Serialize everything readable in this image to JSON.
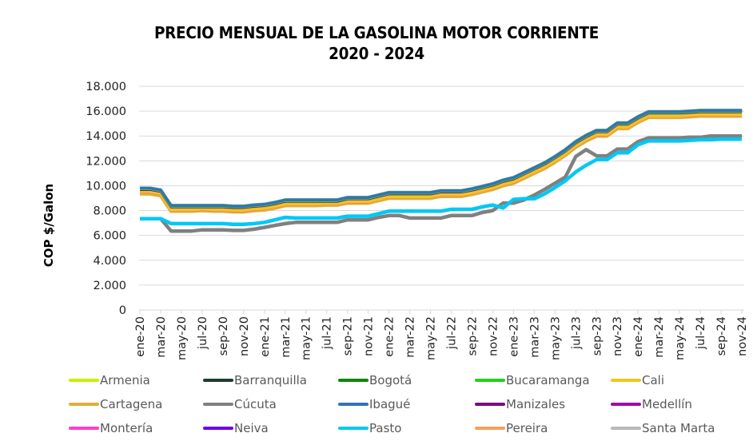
{
  "chart_data": {
    "type": "line",
    "title": "PRECIO MENSUAL DE LA GASOLINA MOTOR CORRIENTE",
    "subtitle": "2020 - 2024",
    "xlabel": "",
    "ylabel": "COP $/Galon",
    "ylim": [
      0,
      18000
    ],
    "yticks": [
      0,
      2000,
      4000,
      6000,
      8000,
      10000,
      12000,
      14000,
      16000,
      18000
    ],
    "ytick_labels": [
      "0",
      "2.000",
      "4.000",
      "6.000",
      "8.000",
      "10.000",
      "12.000",
      "14.000",
      "16.000",
      "18.000"
    ],
    "grid": true,
    "legend_position": "bottom",
    "x": [
      "ene-20",
      "feb-20",
      "mar-20",
      "abr-20",
      "may-20",
      "jun-20",
      "jul-20",
      "ago-20",
      "sep-20",
      "oct-20",
      "nov-20",
      "dic-20",
      "ene-21",
      "feb-21",
      "mar-21",
      "abr-21",
      "may-21",
      "jun-21",
      "jul-21",
      "ago-21",
      "sep-21",
      "oct-21",
      "nov-21",
      "dic-21",
      "ene-22",
      "feb-22",
      "mar-22",
      "abr-22",
      "may-22",
      "jun-22",
      "jul-22",
      "ago-22",
      "sep-22",
      "oct-22",
      "nov-22",
      "dic-22",
      "ene-23",
      "feb-23",
      "mar-23",
      "abr-23",
      "may-23",
      "jun-23",
      "jul-23",
      "ago-23",
      "sep-23",
      "oct-23",
      "nov-23",
      "dic-23",
      "ene-24",
      "feb-24",
      "mar-24",
      "abr-24",
      "may-24",
      "jun-24",
      "jul-24",
      "ago-24",
      "sep-24",
      "oct-24",
      "nov-24"
    ],
    "x_tick_labels": [
      "ene-20",
      "mar-20",
      "may-20",
      "jul-20",
      "sep-20",
      "nov-20",
      "ene-21",
      "mar-21",
      "may-21",
      "jul-21",
      "sep-21",
      "nov-21",
      "ene-22",
      "mar-22",
      "may-22",
      "jul-22",
      "sep-22",
      "nov-22",
      "ene-23",
      "mar-23",
      "may-23",
      "jul-23",
      "sep-23",
      "nov-23",
      "ene-24",
      "mar-24",
      "may-24",
      "jul-24",
      "sep-24",
      "nov-24"
    ],
    "series": [
      {
        "name": "Armenia",
        "color": "#C6F000",
        "values": [
          9750,
          9750,
          9600,
          8350,
          8350,
          8350,
          8350,
          8350,
          8350,
          8300,
          8300,
          8400,
          8450,
          8600,
          8800,
          8800,
          8800,
          8800,
          8800,
          8800,
          9000,
          9000,
          9000,
          9200,
          9400,
          9400,
          9400,
          9400,
          9400,
          9550,
          9550,
          9550,
          9700,
          9900,
          10100,
          10400,
          10600,
          11000,
          11400,
          11800,
          12300,
          12850,
          13500,
          14000,
          14400,
          14400,
          15000,
          15000,
          15500,
          15900,
          15900,
          15900,
          15900,
          15950,
          16000,
          16000,
          16000,
          16000,
          16000
        ]
      },
      {
        "name": "Barranquilla",
        "color": "#1F3D2F",
        "values": [
          9700,
          9700,
          9550,
          8300,
          8300,
          8300,
          8300,
          8300,
          8300,
          8250,
          8250,
          8350,
          8400,
          8550,
          8750,
          8750,
          8750,
          8750,
          8750,
          8750,
          8950,
          8950,
          8950,
          9150,
          9350,
          9350,
          9350,
          9350,
          9350,
          9500,
          9500,
          9500,
          9650,
          9850,
          10050,
          10350,
          10550,
          10950,
          11350,
          11750,
          12250,
          12800,
          13450,
          13950,
          14350,
          14350,
          14950,
          14950,
          15450,
          15850,
          15850,
          15850,
          15850,
          15900,
          15950,
          15950,
          15950,
          15950,
          15950
        ]
      },
      {
        "name": "Bogotá",
        "color": "#0A8A00",
        "values": [
          9800,
          9800,
          9650,
          8400,
          8400,
          8400,
          8400,
          8400,
          8400,
          8350,
          8350,
          8450,
          8500,
          8650,
          8850,
          8850,
          8850,
          8850,
          8850,
          8850,
          9050,
          9050,
          9050,
          9250,
          9450,
          9450,
          9450,
          9450,
          9450,
          9600,
          9600,
          9600,
          9750,
          9950,
          10150,
          10450,
          10650,
          11050,
          11450,
          11850,
          12350,
          12900,
          13550,
          14050,
          14450,
          14450,
          15050,
          15050,
          15550,
          15950,
          15950,
          15950,
          15950,
          16000,
          16050,
          16050,
          16050,
          16050,
          16050
        ]
      },
      {
        "name": "Bucaramanga",
        "color": "#22D11A",
        "values": [
          9750,
          9750,
          9600,
          8350,
          8350,
          8350,
          8350,
          8350,
          8350,
          8300,
          8300,
          8400,
          8450,
          8600,
          8800,
          8800,
          8800,
          8800,
          8800,
          8800,
          9000,
          9000,
          9000,
          9200,
          9400,
          9400,
          9400,
          9400,
          9400,
          9550,
          9550,
          9550,
          9700,
          9900,
          10100,
          10400,
          10600,
          11000,
          11400,
          11800,
          12300,
          12850,
          13500,
          14000,
          14400,
          14400,
          15000,
          15000,
          15500,
          15900,
          15900,
          15900,
          15900,
          15950,
          16000,
          16000,
          16000,
          16000,
          16000
        ]
      },
      {
        "name": "Cali",
        "color": "#F5C518",
        "values": [
          9550,
          9550,
          9400,
          8100,
          8100,
          8100,
          8150,
          8100,
          8100,
          8050,
          8050,
          8150,
          8200,
          8350,
          8550,
          8550,
          8550,
          8550,
          8600,
          8600,
          8750,
          8750,
          8750,
          8950,
          9150,
          9150,
          9150,
          9150,
          9150,
          9300,
          9300,
          9300,
          9450,
          9650,
          9850,
          10150,
          10350,
          10750,
          11150,
          11550,
          12050,
          12600,
          13250,
          13750,
          14150,
          14150,
          14750,
          14750,
          15250,
          15650,
          15650,
          15650,
          15650,
          15700,
          15750,
          15750,
          15750,
          15750,
          15750
        ]
      },
      {
        "name": "Cartagena",
        "color": "#E0AE3C",
        "values": [
          9350,
          9350,
          9200,
          7950,
          7950,
          7950,
          8000,
          7950,
          7950,
          7900,
          7900,
          8000,
          8050,
          8200,
          8400,
          8400,
          8400,
          8400,
          8450,
          8450,
          8600,
          8600,
          8600,
          8800,
          9000,
          9000,
          9000,
          9000,
          9000,
          9150,
          9150,
          9150,
          9300,
          9500,
          9700,
          10000,
          10200,
          10600,
          11000,
          11400,
          11900,
          12450,
          13100,
          13600,
          14000,
          14000,
          14600,
          14600,
          15100,
          15500,
          15500,
          15500,
          15500,
          15550,
          15600,
          15600,
          15600,
          15600,
          15600
        ]
      },
      {
        "name": "Cúcuta",
        "color": "#808080",
        "values": [
          7350,
          7350,
          7350,
          6350,
          6350,
          6350,
          6450,
          6450,
          6450,
          6400,
          6400,
          6500,
          6650,
          6800,
          6950,
          7050,
          7050,
          7050,
          7050,
          7050,
          7250,
          7250,
          7250,
          7450,
          7600,
          7600,
          7400,
          7400,
          7400,
          7400,
          7600,
          7600,
          7600,
          7850,
          8000,
          8600,
          8600,
          8850,
          9250,
          9700,
          10200,
          10700,
          12350,
          12900,
          12400,
          12400,
          12950,
          12950,
          13550,
          13850,
          13850,
          13850,
          13850,
          13900,
          13900,
          14000,
          14000,
          14000,
          14000
        ]
      },
      {
        "name": "Ibagué",
        "color": "#2E75B6",
        "values": [
          9800,
          9800,
          9650,
          8400,
          8400,
          8400,
          8400,
          8400,
          8400,
          8350,
          8350,
          8450,
          8500,
          8650,
          8850,
          8850,
          8850,
          8850,
          8850,
          8850,
          9050,
          9050,
          9050,
          9250,
          9450,
          9450,
          9450,
          9450,
          9450,
          9600,
          9600,
          9600,
          9750,
          9950,
          10150,
          10450,
          10650,
          11050,
          11450,
          11850,
          12350,
          12900,
          13550,
          14050,
          14450,
          14450,
          15050,
          15050,
          15550,
          15950,
          15950,
          15950,
          15950,
          16000,
          16050,
          16050,
          16050,
          16050,
          16050
        ]
      },
      {
        "name": "Manizales",
        "color": "#7B0A82",
        "values": [
          9750,
          9750,
          9600,
          8350,
          8350,
          8350,
          8350,
          8350,
          8350,
          8300,
          8300,
          8400,
          8450,
          8600,
          8800,
          8800,
          8800,
          8800,
          8800,
          8800,
          9000,
          9000,
          9000,
          9200,
          9400,
          9400,
          9400,
          9400,
          9400,
          9550,
          9550,
          9550,
          9700,
          9900,
          10100,
          10400,
          10600,
          11000,
          11400,
          11800,
          12300,
          12850,
          13500,
          14000,
          14400,
          14400,
          15000,
          15000,
          15500,
          15900,
          15900,
          15900,
          15900,
          15950,
          16000,
          16000,
          16000,
          16000,
          16000
        ]
      },
      {
        "name": "Medellín",
        "color": "#A00AA8",
        "values": [
          9750,
          9750,
          9600,
          8350,
          8350,
          8350,
          8350,
          8350,
          8350,
          8300,
          8300,
          8400,
          8450,
          8600,
          8800,
          8800,
          8800,
          8800,
          8800,
          8800,
          9000,
          9000,
          9000,
          9200,
          9400,
          9400,
          9400,
          9400,
          9400,
          9550,
          9550,
          9550,
          9700,
          9900,
          10100,
          10400,
          10600,
          11000,
          11400,
          11800,
          12300,
          12850,
          13500,
          14000,
          14400,
          14400,
          15000,
          15000,
          15500,
          15900,
          15900,
          15900,
          15900,
          15950,
          16000,
          16000,
          16000,
          16000,
          16000
        ]
      },
      {
        "name": "Montería",
        "color": "#FF3EC8",
        "values": [
          9500,
          9500,
          9350,
          8050,
          8050,
          8050,
          8100,
          8050,
          8050,
          8000,
          8000,
          8100,
          8150,
          8300,
          8500,
          8500,
          8500,
          8500,
          8550,
          8550,
          8700,
          8700,
          8700,
          8900,
          9100,
          9100,
          9100,
          9100,
          9100,
          9250,
          9250,
          9250,
          9400,
          9600,
          9800,
          10100,
          10300,
          10700,
          11100,
          11500,
          12000,
          12550,
          13200,
          13700,
          14100,
          14100,
          14700,
          14700,
          15200,
          15600,
          15600,
          15600,
          15600,
          15650,
          15700,
          15700,
          15700,
          15700,
          15700
        ]
      },
      {
        "name": "Neiva",
        "color": "#6A00F0",
        "values": [
          9750,
          9750,
          9600,
          8350,
          8350,
          8350,
          8350,
          8350,
          8350,
          8300,
          8300,
          8400,
          8450,
          8600,
          8800,
          8800,
          8800,
          8800,
          8800,
          8800,
          9000,
          9000,
          9000,
          9200,
          9400,
          9400,
          9400,
          9400,
          9400,
          9550,
          9550,
          9550,
          9700,
          9900,
          10100,
          10400,
          10600,
          11000,
          11400,
          11800,
          12300,
          12850,
          13500,
          14000,
          14400,
          14400,
          15000,
          15000,
          15500,
          15900,
          15900,
          15900,
          15900,
          15950,
          16000,
          16000,
          16000,
          16000,
          16000
        ]
      },
      {
        "name": "Pasto",
        "color": "#00C8F5",
        "values": [
          7350,
          7350,
          7350,
          6950,
          6950,
          6950,
          6950,
          6950,
          6950,
          6900,
          6900,
          6950,
          7050,
          7250,
          7450,
          7400,
          7400,
          7400,
          7400,
          7400,
          7550,
          7550,
          7550,
          7750,
          7950,
          7950,
          7950,
          7950,
          7950,
          7950,
          8100,
          8100,
          8100,
          8300,
          8450,
          8200,
          8900,
          8950,
          8950,
          9350,
          9850,
          10400,
          11100,
          11650,
          12100,
          12100,
          12650,
          12650,
          13300,
          13600,
          13600,
          13600,
          13600,
          13650,
          13700,
          13700,
          13750,
          13750,
          13750
        ]
      },
      {
        "name": "Pereira",
        "color": "#F4A05C",
        "values": [
          9650,
          9650,
          9500,
          8250,
          8250,
          8250,
          8250,
          8250,
          8250,
          8200,
          8200,
          8300,
          8350,
          8500,
          8700,
          8700,
          8700,
          8700,
          8700,
          8700,
          8900,
          8900,
          8900,
          9100,
          9300,
          9300,
          9300,
          9300,
          9300,
          9450,
          9450,
          9450,
          9600,
          9800,
          10000,
          10300,
          10500,
          10900,
          11300,
          11700,
          12200,
          12750,
          13400,
          13900,
          14300,
          14300,
          14900,
          14900,
          15400,
          15800,
          15800,
          15800,
          15800,
          15850,
          15900,
          15900,
          15900,
          15900,
          15900
        ]
      },
      {
        "name": "Santa Marta",
        "color": "#B8B8B8",
        "values": [
          9400,
          9400,
          9250,
          8000,
          8000,
          8000,
          8050,
          8000,
          8000,
          7950,
          7950,
          8050,
          8100,
          8250,
          8450,
          8450,
          8450,
          8450,
          8500,
          8500,
          8650,
          8650,
          8650,
          8850,
          9050,
          9050,
          9050,
          9050,
          9050,
          9200,
          9200,
          9200,
          9350,
          9550,
          9750,
          10050,
          10250,
          10650,
          11050,
          11450,
          11950,
          12500,
          13150,
          13650,
          14050,
          14050,
          14650,
          14650,
          15150,
          15550,
          15550,
          15550,
          15550,
          15600,
          15650,
          15650,
          15650,
          15650,
          15650
        ]
      }
    ]
  }
}
